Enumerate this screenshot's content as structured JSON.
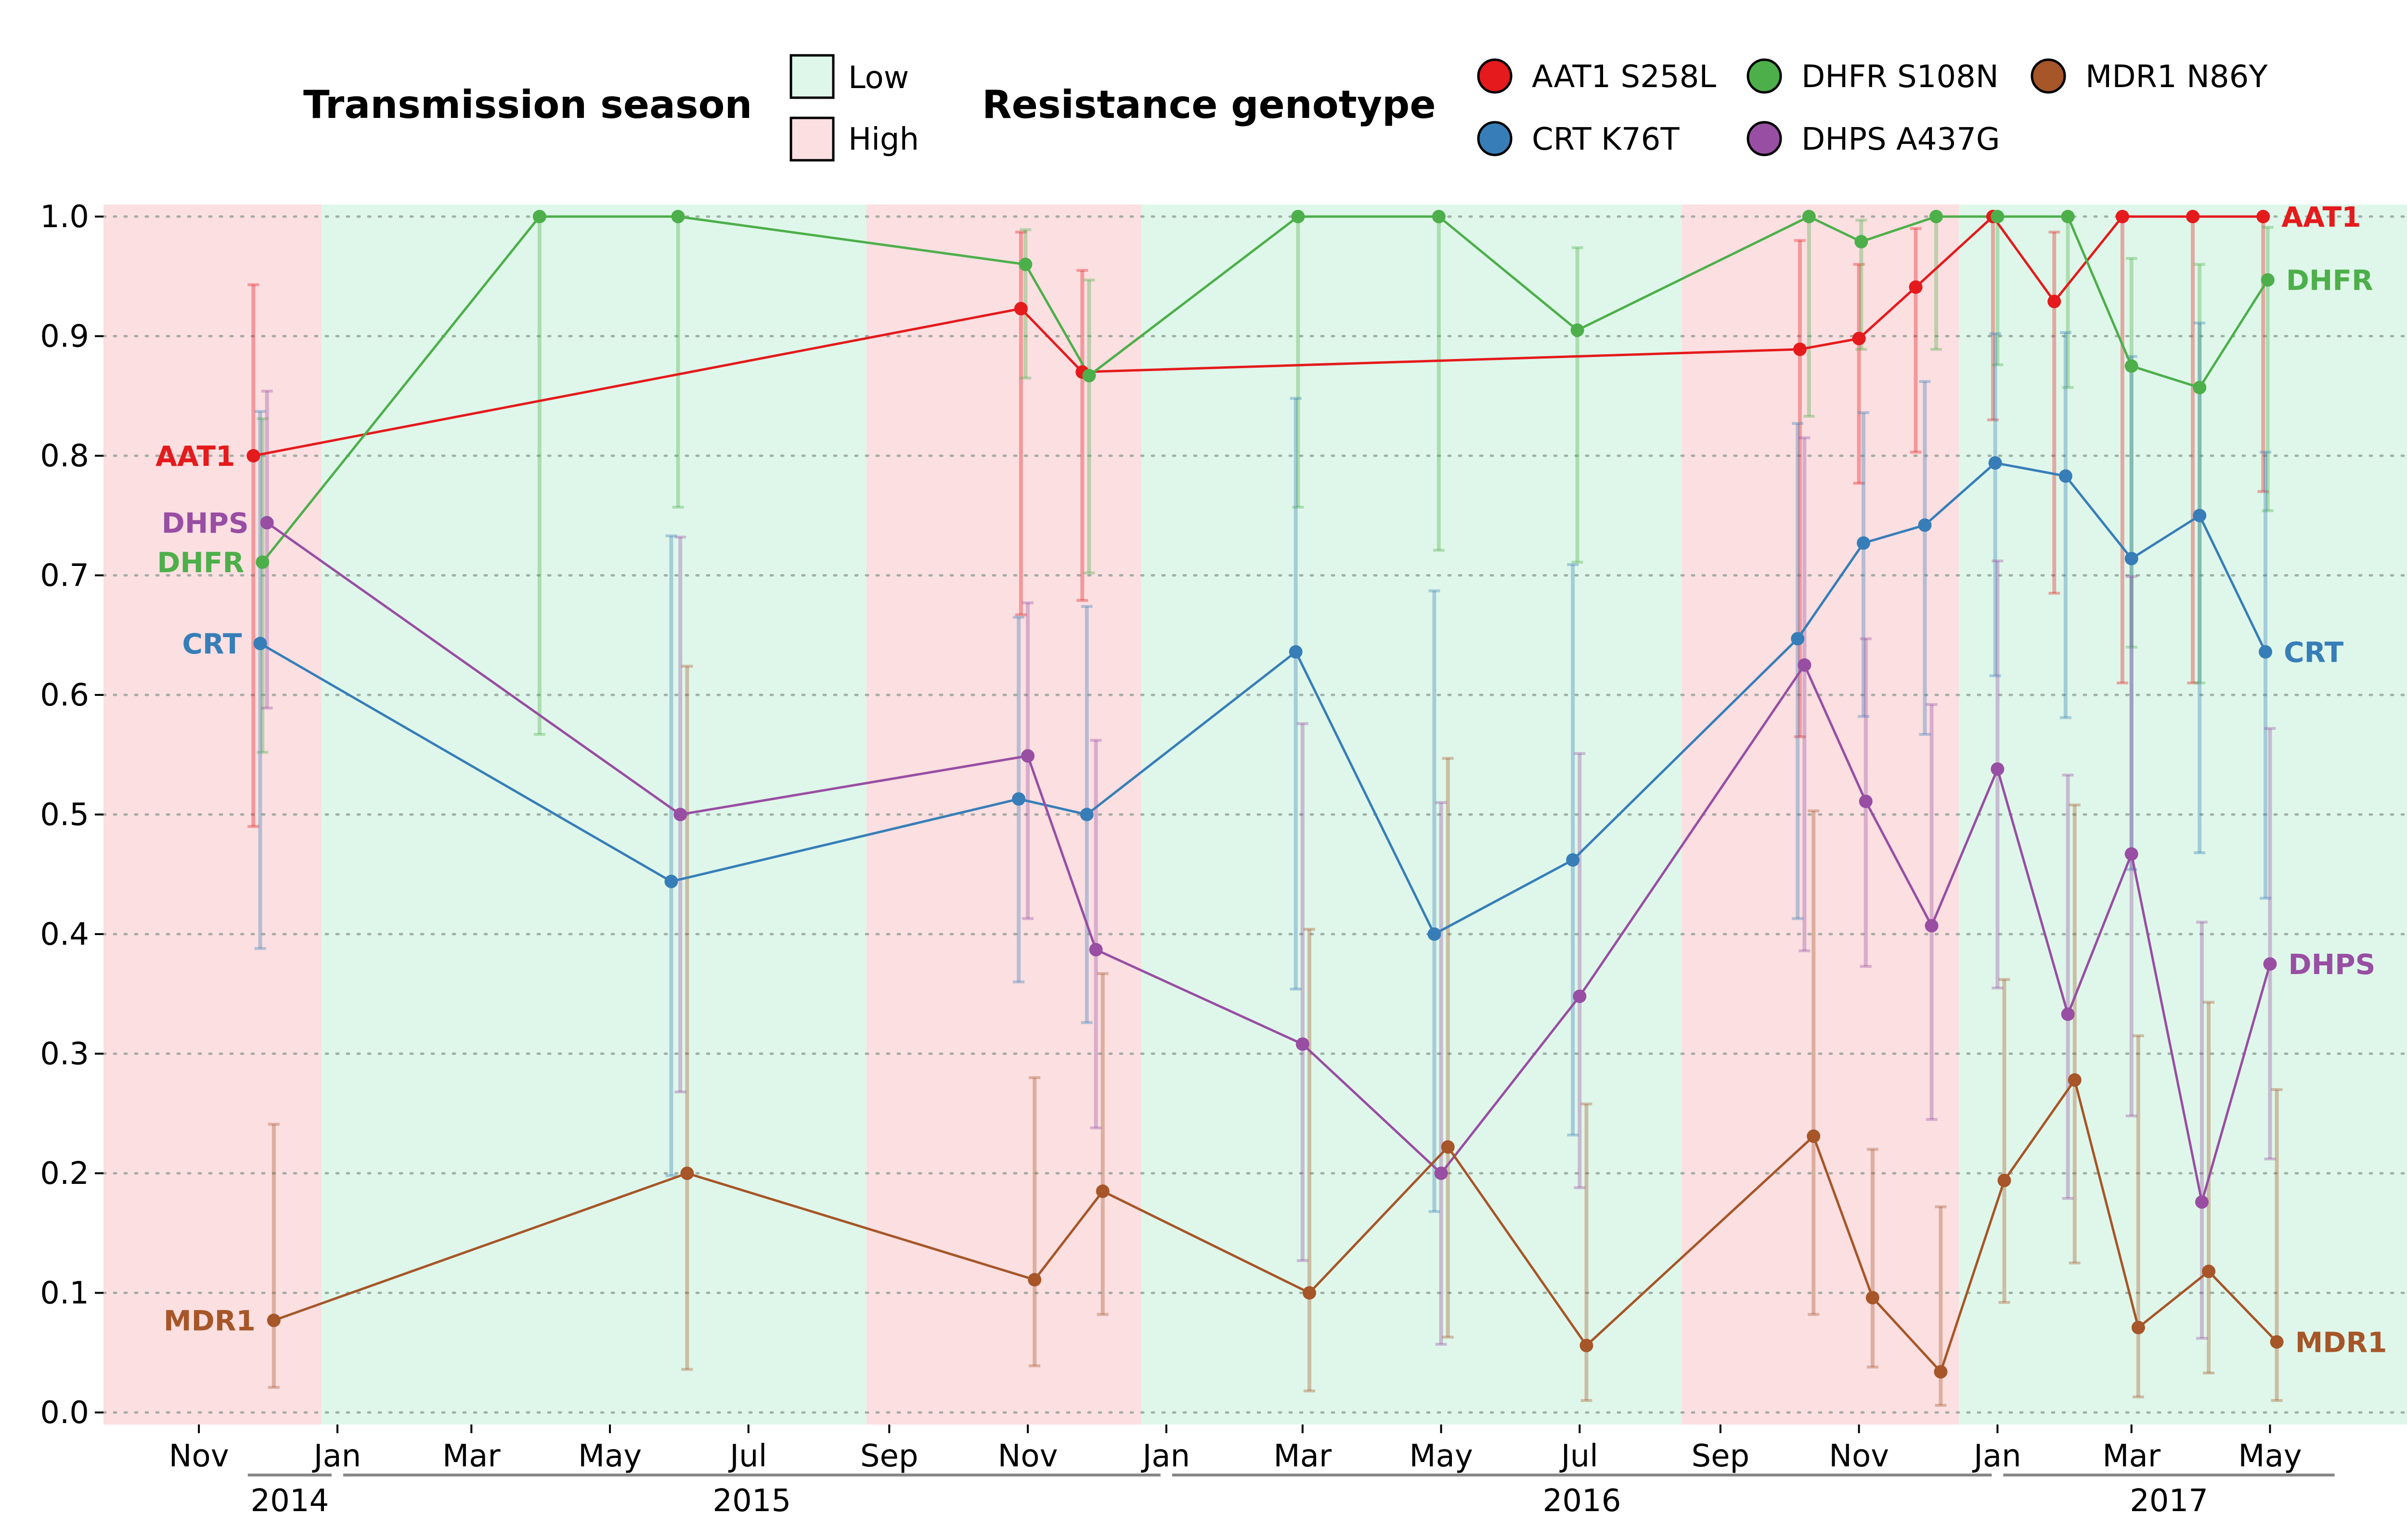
{
  "legend": {
    "season_title": "Transmission season",
    "season_entries": [
      {
        "label": "Low",
        "color": "#dff7ea"
      },
      {
        "label": "High",
        "color": "#fbdfe1"
      }
    ],
    "genotype_title": "Resistance genotype",
    "genotype_entries": [
      {
        "label": "AAT1 S258L",
        "color": "#e41a1c"
      },
      {
        "label": "DHFR S108N",
        "color": "#4daf4a"
      },
      {
        "label": "MDR1 N86Y",
        "color": "#a65628"
      },
      {
        "label": "CRT K76T",
        "color": "#377eb8"
      },
      {
        "label": "DHPS A437G",
        "color": "#984ea3"
      }
    ]
  },
  "chart_data": {
    "type": "line",
    "title": "",
    "xlabel": "",
    "ylabel": "",
    "ylim": [
      0,
      1
    ],
    "xlim": [
      "2014-09-20",
      "2017-07-30"
    ],
    "y_ticks": [
      "0.0",
      "0.1",
      "0.2",
      "0.3",
      "0.4",
      "0.5",
      "0.6",
      "0.7",
      "0.8",
      "0.9",
      "1.0"
    ],
    "x_ticks": [
      {
        "date": "2014-11-01",
        "label": "Nov"
      },
      {
        "date": "2015-01-01",
        "label": "Jan"
      },
      {
        "date": "2015-03-01",
        "label": "Mar"
      },
      {
        "date": "2015-05-01",
        "label": "May"
      },
      {
        "date": "2015-07-01",
        "label": "Jul"
      },
      {
        "date": "2015-09-01",
        "label": "Sep"
      },
      {
        "date": "2015-11-01",
        "label": "Nov"
      },
      {
        "date": "2016-01-01",
        "label": "Jan"
      },
      {
        "date": "2016-03-01",
        "label": "Mar"
      },
      {
        "date": "2016-05-01",
        "label": "May"
      },
      {
        "date": "2016-07-01",
        "label": "Jul"
      },
      {
        "date": "2016-09-01",
        "label": "Sep"
      },
      {
        "date": "2016-11-01",
        "label": "Nov"
      },
      {
        "date": "2017-01-01",
        "label": "Jan"
      },
      {
        "date": "2017-03-01",
        "label": "Mar"
      },
      {
        "date": "2017-05-01",
        "label": "May"
      }
    ],
    "year_labels": [
      {
        "label": "2014",
        "start": "2014-11-20",
        "end": "2015-01-01"
      },
      {
        "label": "2015",
        "start": "2015-01-01",
        "end": "2016-01-01"
      },
      {
        "label": "2016",
        "start": "2016-01-01",
        "end": "2017-01-01"
      },
      {
        "label": "2017",
        "start": "2017-01-01",
        "end": "2017-06-01"
      }
    ],
    "grid": true,
    "seasons": [
      {
        "season": "High",
        "start": "2014-09-20",
        "end": "2014-12-25"
      },
      {
        "season": "Low",
        "start": "2014-12-25",
        "end": "2015-08-22"
      },
      {
        "season": "High",
        "start": "2015-08-22",
        "end": "2015-12-21"
      },
      {
        "season": "Low",
        "start": "2015-12-21",
        "end": "2016-08-15"
      },
      {
        "season": "High",
        "start": "2016-08-15",
        "end": "2016-12-15"
      },
      {
        "season": "Low",
        "start": "2016-12-15",
        "end": "2017-07-30"
      }
    ],
    "series": [
      {
        "name": "AAT1 S258L",
        "end_label": "AAT1",
        "color": "#e41a1c",
        "points": [
          {
            "x": "2014-11-25",
            "y": 0.8,
            "lo": 0.49,
            "hi": 0.943
          },
          {
            "x": "2015-10-29",
            "y": 0.923,
            "lo": 0.667,
            "hi": 0.987
          },
          {
            "x": "2015-11-25",
            "y": 0.87,
            "lo": 0.679,
            "hi": 0.955
          },
          {
            "x": "2016-10-06",
            "y": 0.889,
            "lo": 0.565,
            "hi": 0.98
          },
          {
            "x": "2016-11-01",
            "y": 0.898,
            "lo": 0.777,
            "hi": 0.96
          },
          {
            "x": "2016-11-26",
            "y": 0.941,
            "lo": 0.803,
            "hi": 0.99
          },
          {
            "x": "2016-12-30",
            "y": 1.0,
            "lo": 0.83,
            "hi": 1.0
          },
          {
            "x": "2017-01-26",
            "y": 0.929,
            "lo": 0.685,
            "hi": 0.987
          },
          {
            "x": "2017-02-25",
            "y": 1.0,
            "lo": 0.61,
            "hi": 1.0
          },
          {
            "x": "2017-03-28",
            "y": 1.0,
            "lo": 0.61,
            "hi": 1.0
          },
          {
            "x": "2017-04-28",
            "y": 1.0,
            "lo": 0.77,
            "hi": 1.0
          }
        ]
      },
      {
        "name": "DHFR S108N",
        "end_label": "DHFR",
        "color": "#4daf4a",
        "points": [
          {
            "x": "2014-11-29",
            "y": 0.711,
            "lo": 0.552,
            "hi": 0.831
          },
          {
            "x": "2015-03-31",
            "y": 1.0,
            "lo": 0.567,
            "hi": 1.0
          },
          {
            "x": "2015-05-31",
            "y": 1.0,
            "lo": 0.757,
            "hi": 1.0
          },
          {
            "x": "2015-10-31",
            "y": 0.96,
            "lo": 0.865,
            "hi": 0.989
          },
          {
            "x": "2015-11-28",
            "y": 0.867,
            "lo": 0.702,
            "hi": 0.947
          },
          {
            "x": "2016-02-28",
            "y": 1.0,
            "lo": 0.757,
            "hi": 1.0
          },
          {
            "x": "2016-04-30",
            "y": 1.0,
            "lo": 0.721,
            "hi": 1.0
          },
          {
            "x": "2016-06-30",
            "y": 0.905,
            "lo": 0.711,
            "hi": 0.974
          },
          {
            "x": "2016-10-10",
            "y": 1.0,
            "lo": 0.833,
            "hi": 1.0
          },
          {
            "x": "2016-11-02",
            "y": 0.979,
            "lo": 0.889,
            "hi": 0.997
          },
          {
            "x": "2016-12-05",
            "y": 1.0,
            "lo": 0.889,
            "hi": 1.0
          },
          {
            "x": "2017-01-01",
            "y": 1.0,
            "lo": 0.876,
            "hi": 1.0
          },
          {
            "x": "2017-02-01",
            "y": 1.0,
            "lo": 0.857,
            "hi": 1.0
          },
          {
            "x": "2017-02-29",
            "y": 0.875,
            "lo": 0.64,
            "hi": 0.965
          },
          {
            "x": "2017-03-31",
            "y": 0.857,
            "lo": 0.61,
            "hi": 0.96
          },
          {
            "x": "2017-04-30",
            "y": 0.947,
            "lo": 0.754,
            "hi": 0.991
          }
        ]
      },
      {
        "name": "CRT K76T",
        "end_label": "CRT",
        "color": "#377eb8",
        "points": [
          {
            "x": "2014-11-28",
            "y": 0.643,
            "lo": 0.388,
            "hi": 0.837
          },
          {
            "x": "2015-05-28",
            "y": 0.444,
            "lo": 0.198,
            "hi": 0.733
          },
          {
            "x": "2015-10-28",
            "y": 0.513,
            "lo": 0.36,
            "hi": 0.665
          },
          {
            "x": "2015-11-27",
            "y": 0.5,
            "lo": 0.326,
            "hi": 0.674
          },
          {
            "x": "2016-02-27",
            "y": 0.636,
            "lo": 0.354,
            "hi": 0.848
          },
          {
            "x": "2016-04-28",
            "y": 0.4,
            "lo": 0.168,
            "hi": 0.687
          },
          {
            "x": "2016-06-28",
            "y": 0.462,
            "lo": 0.232,
            "hi": 0.709
          },
          {
            "x": "2016-10-05",
            "y": 0.647,
            "lo": 0.413,
            "hi": 0.827
          },
          {
            "x": "2016-11-03",
            "y": 0.727,
            "lo": 0.582,
            "hi": 0.836
          },
          {
            "x": "2016-11-30",
            "y": 0.742,
            "lo": 0.567,
            "hi": 0.862
          },
          {
            "x": "2016-12-31",
            "y": 0.794,
            "lo": 0.616,
            "hi": 0.902
          },
          {
            "x": "2017-01-31",
            "y": 0.783,
            "lo": 0.581,
            "hi": 0.903
          },
          {
            "x": "2017-02-29",
            "y": 0.714,
            "lo": 0.454,
            "hi": 0.883
          },
          {
            "x": "2017-03-31",
            "y": 0.75,
            "lo": 0.468,
            "hi": 0.911
          },
          {
            "x": "2017-04-29",
            "y": 0.636,
            "lo": 0.43,
            "hi": 0.803
          }
        ]
      },
      {
        "name": "DHPS A437G",
        "end_label": "DHPS",
        "color": "#984ea3",
        "points": [
          {
            "x": "2014-12-01",
            "y": 0.744,
            "lo": 0.589,
            "hi": 0.854
          },
          {
            "x": "2015-06-01",
            "y": 0.5,
            "lo": 0.268,
            "hi": 0.732
          },
          {
            "x": "2015-11-01",
            "y": 0.549,
            "lo": 0.413,
            "hi": 0.677
          },
          {
            "x": "2015-12-01",
            "y": 0.387,
            "lo": 0.238,
            "hi": 0.562
          },
          {
            "x": "2016-03-01",
            "y": 0.308,
            "lo": 0.127,
            "hi": 0.576
          },
          {
            "x": "2016-05-01",
            "y": 0.2,
            "lo": 0.057,
            "hi": 0.51
          },
          {
            "x": "2016-07-01",
            "y": 0.348,
            "lo": 0.188,
            "hi": 0.551
          },
          {
            "x": "2016-10-08",
            "y": 0.625,
            "lo": 0.386,
            "hi": 0.815
          },
          {
            "x": "2016-11-04",
            "y": 0.511,
            "lo": 0.373,
            "hi": 0.647
          },
          {
            "x": "2016-12-03",
            "y": 0.407,
            "lo": 0.245,
            "hi": 0.592
          },
          {
            "x": "2017-01-01",
            "y": 0.538,
            "lo": 0.355,
            "hi": 0.712
          },
          {
            "x": "2017-02-01",
            "y": 0.333,
            "lo": 0.179,
            "hi": 0.533
          },
          {
            "x": "2017-03-01",
            "y": 0.467,
            "lo": 0.248,
            "hi": 0.699
          },
          {
            "x": "2017-04-01",
            "y": 0.176,
            "lo": 0.062,
            "hi": 0.41
          },
          {
            "x": "2017-05-01",
            "y": 0.375,
            "lo": 0.212,
            "hi": 0.572
          }
        ]
      },
      {
        "name": "MDR1 N86Y",
        "end_label": "MDR1",
        "color": "#a65628",
        "points": [
          {
            "x": "2014-12-04",
            "y": 0.077,
            "lo": 0.021,
            "hi": 0.241
          },
          {
            "x": "2015-06-04",
            "y": 0.2,
            "lo": 0.036,
            "hi": 0.624
          },
          {
            "x": "2015-11-04",
            "y": 0.111,
            "lo": 0.039,
            "hi": 0.28
          },
          {
            "x": "2015-12-04",
            "y": 0.185,
            "lo": 0.082,
            "hi": 0.367
          },
          {
            "x": "2016-03-04",
            "y": 0.1,
            "lo": 0.018,
            "hi": 0.404
          },
          {
            "x": "2016-05-04",
            "y": 0.222,
            "lo": 0.063,
            "hi": 0.547
          },
          {
            "x": "2016-07-04",
            "y": 0.056,
            "lo": 0.01,
            "hi": 0.258
          },
          {
            "x": "2016-10-12",
            "y": 0.231,
            "lo": 0.082,
            "hi": 0.503
          },
          {
            "x": "2016-11-07",
            "y": 0.096,
            "lo": 0.038,
            "hi": 0.22
          },
          {
            "x": "2016-12-07",
            "y": 0.034,
            "lo": 0.006,
            "hi": 0.172
          },
          {
            "x": "2017-01-04",
            "y": 0.194,
            "lo": 0.092,
            "hi": 0.362
          },
          {
            "x": "2017-02-04",
            "y": 0.278,
            "lo": 0.125,
            "hi": 0.508
          },
          {
            "x": "2017-03-04",
            "y": 0.071,
            "lo": 0.013,
            "hi": 0.315
          },
          {
            "x": "2017-04-04",
            "y": 0.118,
            "lo": 0.033,
            "hi": 0.343
          },
          {
            "x": "2017-05-04",
            "y": 0.059,
            "lo": 0.01,
            "hi": 0.27
          }
        ]
      }
    ]
  }
}
